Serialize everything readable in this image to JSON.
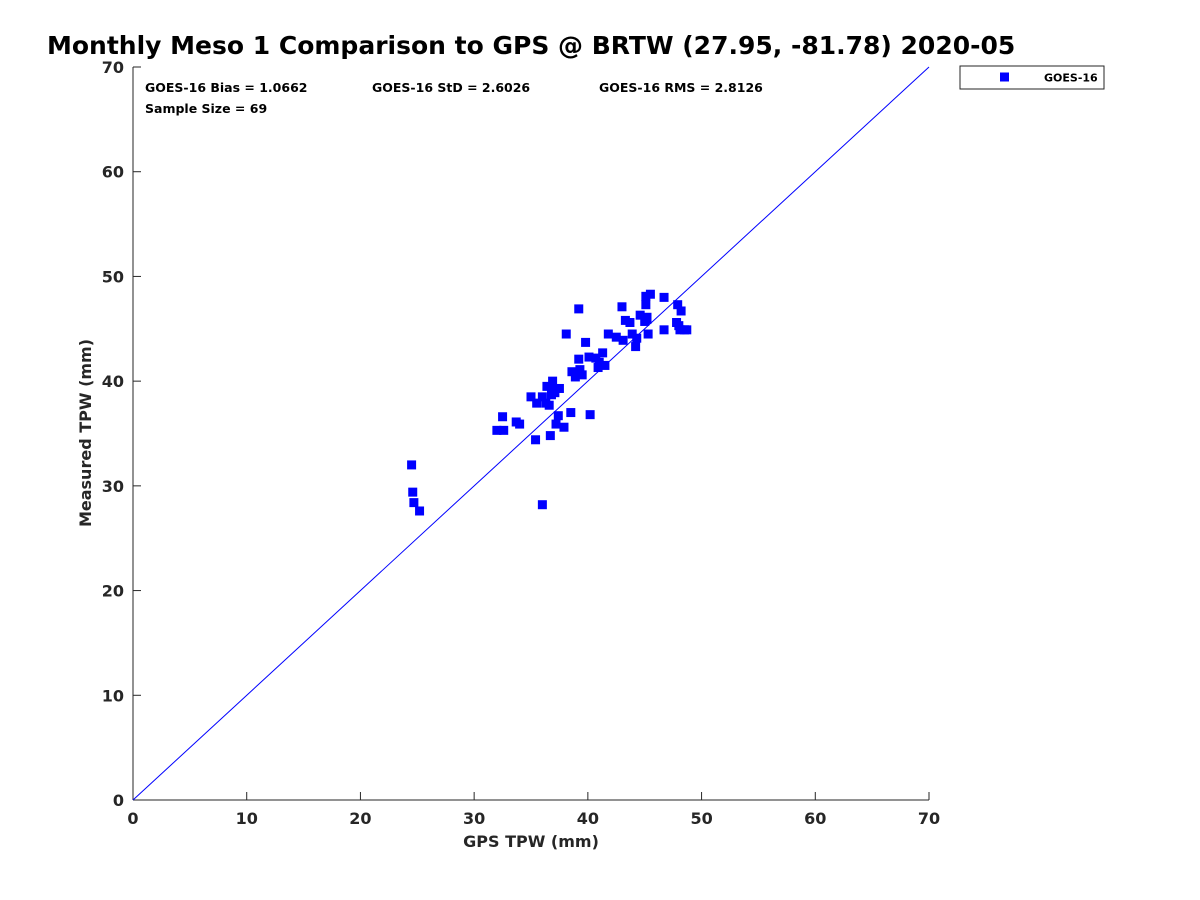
{
  "chart_data": {
    "type": "scatter",
    "title": "Monthly Meso 1 Comparison to GPS @ BRTW (27.95, -81.78) 2020-05",
    "xlabel": "GPS TPW (mm)",
    "ylabel": "Measured TPW (mm)",
    "xlim": [
      0,
      70
    ],
    "ylim": [
      0,
      70
    ],
    "xticks": [
      "0",
      "10",
      "20",
      "30",
      "40",
      "50",
      "60",
      "70"
    ],
    "yticks": [
      "0",
      "10",
      "20",
      "30",
      "40",
      "50",
      "60",
      "70"
    ],
    "grid": false,
    "legend_position": "top-right",
    "annotations": {
      "bias": "GOES-16 Bias = 1.0662",
      "std": "GOES-16 StD = 2.6026",
      "rms": "GOES-16 RMS = 2.8126",
      "sample": "Sample Size = 69"
    },
    "reference_line": {
      "from": [
        0,
        0
      ],
      "to": [
        70,
        70
      ],
      "color": "#0000ff"
    },
    "series": [
      {
        "name": "GOES-16",
        "color": "#0000ff",
        "marker": "square",
        "points": [
          [
            24.5,
            32.0
          ],
          [
            24.6,
            29.4
          ],
          [
            24.7,
            28.4
          ],
          [
            25.2,
            27.6
          ],
          [
            32.0,
            35.3
          ],
          [
            32.5,
            36.6
          ],
          [
            32.6,
            35.3
          ],
          [
            33.7,
            36.1
          ],
          [
            34.0,
            35.9
          ],
          [
            35.0,
            38.5
          ],
          [
            35.4,
            34.4
          ],
          [
            35.5,
            37.9
          ],
          [
            36.0,
            28.2
          ],
          [
            36.0,
            38.5
          ],
          [
            36.3,
            37.9
          ],
          [
            36.4,
            39.5
          ],
          [
            36.6,
            37.7
          ],
          [
            36.7,
            34.8
          ],
          [
            36.8,
            38.7
          ],
          [
            36.9,
            40.0
          ],
          [
            37.0,
            39.2
          ],
          [
            37.1,
            38.9
          ],
          [
            37.2,
            35.9
          ],
          [
            37.4,
            36.7
          ],
          [
            37.5,
            39.3
          ],
          [
            37.9,
            35.6
          ],
          [
            38.1,
            44.5
          ],
          [
            38.5,
            37.0
          ],
          [
            38.6,
            40.9
          ],
          [
            38.9,
            40.4
          ],
          [
            39.0,
            40.8
          ],
          [
            39.2,
            46.9
          ],
          [
            39.2,
            42.1
          ],
          [
            39.3,
            41.1
          ],
          [
            39.5,
            40.6
          ],
          [
            39.8,
            43.7
          ],
          [
            40.1,
            42.3
          ],
          [
            40.2,
            36.8
          ],
          [
            40.7,
            42.2
          ],
          [
            40.9,
            41.3
          ],
          [
            41.0,
            41.8
          ],
          [
            41.3,
            42.7
          ],
          [
            41.5,
            41.5
          ],
          [
            41.8,
            44.5
          ],
          [
            42.5,
            44.2
          ],
          [
            43.0,
            47.1
          ],
          [
            43.1,
            43.9
          ],
          [
            43.3,
            45.8
          ],
          [
            43.7,
            45.6
          ],
          [
            43.9,
            44.5
          ],
          [
            44.2,
            43.3
          ],
          [
            44.3,
            44.1
          ],
          [
            44.6,
            46.3
          ],
          [
            45.0,
            45.7
          ],
          [
            45.1,
            47.3
          ],
          [
            45.1,
            48.1
          ],
          [
            45.2,
            46.1
          ],
          [
            45.3,
            44.5
          ],
          [
            45.5,
            48.3
          ],
          [
            46.7,
            48.0
          ],
          [
            46.7,
            44.9
          ],
          [
            47.8,
            45.6
          ],
          [
            47.9,
            47.3
          ],
          [
            48.0,
            45.3
          ],
          [
            48.1,
            44.9
          ],
          [
            48.2,
            46.7
          ],
          [
            48.5,
            44.9
          ],
          [
            48.7,
            44.9
          ],
          [
            45.2,
            45.9
          ]
        ]
      }
    ]
  }
}
